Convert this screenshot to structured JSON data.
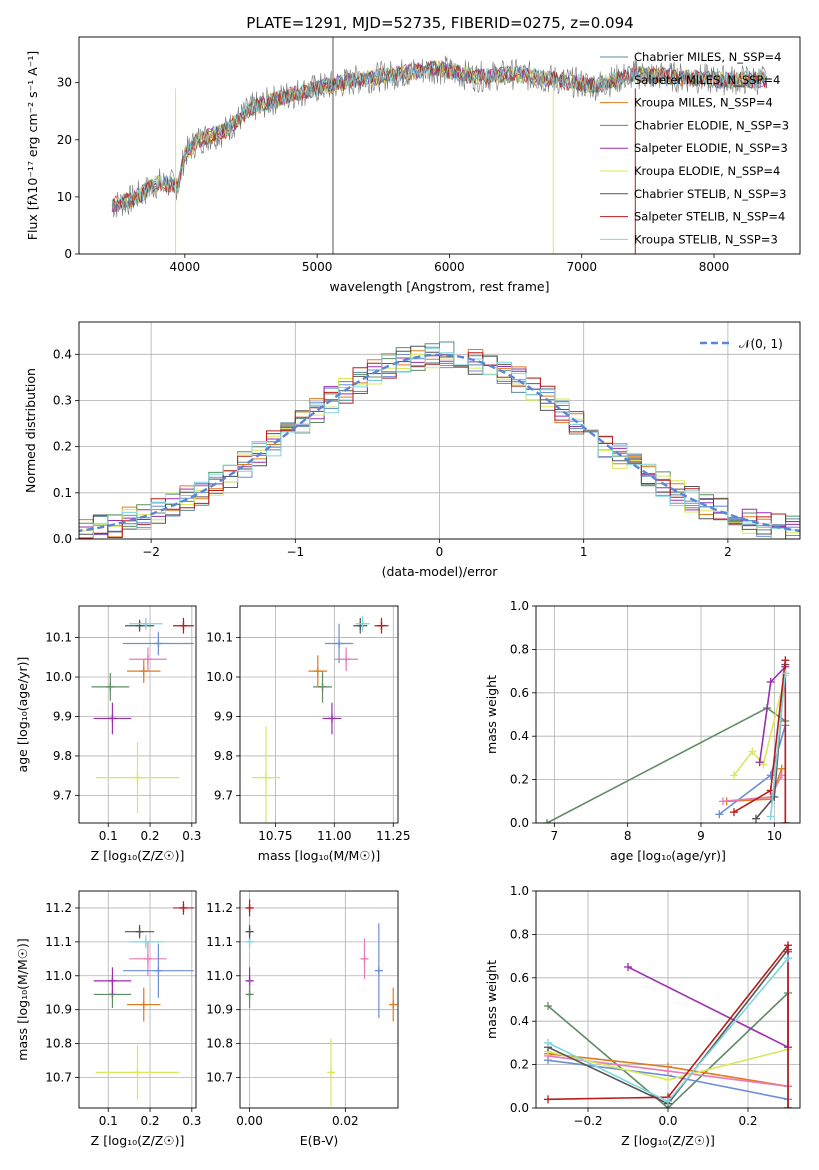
{
  "figure": {
    "title": "PLATE=1291, MJD=52735, FIBERID=0275, z=0.094"
  },
  "chart_data": [
    {
      "type": "line",
      "panel": "spectrum",
      "xlabel": "wavelength [Angstrom, rest frame]",
      "ylabel": "Flux [fλ10⁻¹⁷ erg cm⁻² s⁻¹ A⁻¹]",
      "xlim": [
        3200,
        8650
      ],
      "ylim": [
        0,
        38
      ],
      "xticks": [
        "4000",
        "5000",
        "6000",
        "7000",
        "8000"
      ],
      "yticks": [
        "0",
        "10",
        "20",
        "30"
      ],
      "series": [
        {
          "name": "Chabrier MILES, N_SSP=4",
          "color": "#5a8a9e"
        },
        {
          "name": "Salpeter MILES, N_SSP=4",
          "color": "#6d8fd8"
        },
        {
          "name": "Kroupa MILES, N_SSP=4",
          "color": "#e07b1f"
        },
        {
          "name": "Chabrier ELODIE, N_SSP=3",
          "color": "#5f8c63"
        },
        {
          "name": "Salpeter ELODIE, N_SSP=3",
          "color": "#9b2fae"
        },
        {
          "name": "Kroupa ELODIE, N_SSP=4",
          "color": "#d9e85a"
        },
        {
          "name": "Chabrier STELIB, N_SSP=3",
          "color": "#555555"
        },
        {
          "name": "Salpeter STELIB, N_SSP=4",
          "color": "#b81c1c"
        },
        {
          "name": "Kroupa STELIB, N_SSP=3",
          "color": "#7fd6e0"
        }
      ],
      "continuum": {
        "x": [
          3450,
          3600,
          3800,
          3950,
          4000,
          4100,
          4300,
          4500,
          4800,
          5100,
          5300,
          5600,
          5900,
          6200,
          6500,
          6800,
          7100,
          7400,
          7700,
          8000,
          8400
        ],
        "y": [
          8.5,
          9.5,
          12.5,
          12.0,
          17.5,
          20.0,
          21.5,
          25.5,
          28.0,
          29.5,
          30.5,
          31.5,
          32.5,
          31.0,
          31.5,
          30.5,
          29.5,
          31.5,
          31.0,
          30.5,
          30.5
        ]
      }
    },
    {
      "type": "line",
      "panel": "residual-histogram",
      "xlabel": "(data-model)/error",
      "ylabel": "Normed distribution",
      "xlim": [
        -2.5,
        2.5
      ],
      "ylim": [
        0,
        0.47
      ],
      "xticks": [
        "−2",
        "−1",
        "0",
        "1",
        "2"
      ],
      "yticks": [
        "0.0",
        "0.1",
        "0.2",
        "0.3",
        "0.4"
      ],
      "legend": "𝒩(0, 1)",
      "gaussian_color": "#5b86d6"
    },
    {
      "type": "scatter",
      "panel": "age-vs-Z",
      "xlabel": "Z [log₁₀(Z/Z☉)]",
      "ylabel": "age  [log₁₀(age/yr)]",
      "xlim": [
        0.03,
        0.31
      ],
      "ylim": [
        9.63,
        10.18
      ],
      "xticks": [
        "0.1",
        "0.2",
        "0.3"
      ],
      "yticks": [
        "9.7",
        "9.8",
        "9.9",
        "10.0",
        "10.1"
      ],
      "points": [
        {
          "x": 0.17,
          "y": 9.745,
          "xerr": 0.1,
          "yerr": 0.09,
          "color": "#d9e85a"
        },
        {
          "x": 0.11,
          "y": 9.895,
          "xerr": 0.045,
          "yerr": 0.04,
          "color": "#9b2fae"
        },
        {
          "x": 0.105,
          "y": 9.975,
          "xerr": 0.045,
          "yerr": 0.035,
          "color": "#5f8c63"
        },
        {
          "x": 0.185,
          "y": 10.015,
          "xerr": 0.04,
          "yerr": 0.03,
          "color": "#e07b1f"
        },
        {
          "x": 0.195,
          "y": 10.045,
          "xerr": 0.045,
          "yerr": 0.03,
          "color": "#e87bb6"
        },
        {
          "x": 0.22,
          "y": 10.085,
          "xerr": 0.085,
          "yerr": 0.03,
          "color": "#6d8fd8"
        },
        {
          "x": 0.175,
          "y": 10.13,
          "xerr": 0.035,
          "yerr": 0.015,
          "color": "#555555"
        },
        {
          "x": 0.19,
          "y": 10.135,
          "xerr": 0.04,
          "yerr": 0.015,
          "color": "#7fd6e0"
        },
        {
          "x": 0.28,
          "y": 10.13,
          "xerr": 0.025,
          "yerr": 0.02,
          "color": "#b81c1c"
        }
      ]
    },
    {
      "type": "scatter",
      "panel": "age-vs-mass",
      "xlabel": "mass [log₁₀(M/M☉)]",
      "ylabel": "",
      "xlim": [
        10.6,
        11.27
      ],
      "ylim": [
        9.63,
        10.18
      ],
      "xticks": [
        "10.75",
        "11.00",
        "11.25"
      ],
      "yticks": [
        "9.7",
        "9.8",
        "9.9",
        "10.0",
        "10.1"
      ],
      "points": [
        {
          "x": 10.71,
          "y": 9.745,
          "xerr": 0.06,
          "yerr": 0.13,
          "color": "#d9e85a"
        },
        {
          "x": 10.99,
          "y": 9.895,
          "xerr": 0.04,
          "yerr": 0.04,
          "color": "#9b2fae"
        },
        {
          "x": 10.95,
          "y": 9.975,
          "xerr": 0.04,
          "yerr": 0.04,
          "color": "#5f8c63"
        },
        {
          "x": 10.93,
          "y": 10.015,
          "xerr": 0.04,
          "yerr": 0.04,
          "color": "#e07b1f"
        },
        {
          "x": 11.05,
          "y": 10.045,
          "xerr": 0.05,
          "yerr": 0.03,
          "color": "#e87bb6"
        },
        {
          "x": 11.02,
          "y": 10.085,
          "xerr": 0.06,
          "yerr": 0.05,
          "color": "#6d8fd8"
        },
        {
          "x": 11.11,
          "y": 10.13,
          "xerr": 0.03,
          "yerr": 0.02,
          "color": "#555555"
        },
        {
          "x": 11.12,
          "y": 10.135,
          "xerr": 0.03,
          "yerr": 0.02,
          "color": "#7fd6e0"
        },
        {
          "x": 11.2,
          "y": 10.13,
          "xerr": 0.03,
          "yerr": 0.02,
          "color": "#b81c1c"
        }
      ]
    },
    {
      "type": "line",
      "panel": "massweight-vs-age",
      "xlabel": "age  [log₁₀(age/yr)]",
      "ylabel": "mass weight",
      "xlim": [
        6.75,
        10.35
      ],
      "ylim": [
        0,
        1.0
      ],
      "xticks": [
        "7",
        "8",
        "9",
        "10"
      ],
      "yticks": [
        "0.0",
        "0.2",
        "0.4",
        "0.6",
        "0.8",
        "1.0"
      ],
      "series": [
        {
          "color": "#5f8c63",
          "x": [
            6.9,
            9.9,
            10.15,
            10.15
          ],
          "y": [
            0.0,
            0.53,
            0.47,
            0.0
          ]
        },
        {
          "color": "#6d8fd8",
          "x": [
            9.25,
            9.95,
            10.15
          ],
          "y": [
            0.04,
            0.22,
            0.45
          ]
        },
        {
          "color": "#e07b1f",
          "x": [
            9.35,
            9.95,
            10.1
          ],
          "y": [
            0.1,
            0.11,
            0.25
          ]
        },
        {
          "color": "#e87bb6",
          "x": [
            9.3,
            9.95,
            10.1
          ],
          "y": [
            0.1,
            0.12,
            0.22
          ]
        },
        {
          "color": "#d9e85a",
          "x": [
            9.45,
            9.7,
            9.85,
            10.15
          ],
          "y": [
            0.22,
            0.33,
            0.27,
            0.68
          ]
        },
        {
          "color": "#9b2fae",
          "x": [
            9.8,
            9.95,
            10.15
          ],
          "y": [
            0.28,
            0.65,
            0.72
          ]
        },
        {
          "color": "#555555",
          "x": [
            9.75,
            10.0,
            10.15
          ],
          "y": [
            0.02,
            0.12,
            0.73
          ]
        },
        {
          "color": "#b81c1c",
          "x": [
            9.45,
            9.95,
            10.15,
            10.15
          ],
          "y": [
            0.05,
            0.15,
            0.75,
            0.0
          ]
        },
        {
          "color": "#7fd6e0",
          "x": [
            9.95,
            10.15
          ],
          "y": [
            0.03,
            0.69
          ]
        }
      ]
    },
    {
      "type": "scatter",
      "panel": "mass-vs-Z",
      "xlabel": "Z [log₁₀(Z/Z☉)]",
      "ylabel": "mass [log₁₀(M/M☉)]",
      "xlim": [
        0.03,
        0.31
      ],
      "ylim": [
        10.61,
        11.25
      ],
      "xticks": [
        "0.1",
        "0.2",
        "0.3"
      ],
      "yticks": [
        "10.7",
        "10.8",
        "10.9",
        "11.0",
        "11.1",
        "11.2"
      ],
      "points": [
        {
          "x": 0.17,
          "y": 10.715,
          "xerr": 0.1,
          "yerr": 0.08,
          "color": "#d9e85a"
        },
        {
          "x": 0.11,
          "y": 10.945,
          "xerr": 0.045,
          "yerr": 0.04,
          "color": "#5f8c63"
        },
        {
          "x": 0.11,
          "y": 10.985,
          "xerr": 0.045,
          "yerr": 0.04,
          "color": "#9b2fae"
        },
        {
          "x": 0.185,
          "y": 10.915,
          "xerr": 0.04,
          "yerr": 0.05,
          "color": "#e07b1f"
        },
        {
          "x": 0.195,
          "y": 11.05,
          "xerr": 0.045,
          "yerr": 0.05,
          "color": "#e87bb6"
        },
        {
          "x": 0.22,
          "y": 11.015,
          "xerr": 0.085,
          "yerr": 0.08,
          "color": "#6d8fd8"
        },
        {
          "x": 0.175,
          "y": 11.13,
          "xerr": 0.035,
          "yerr": 0.02,
          "color": "#555555"
        },
        {
          "x": 0.19,
          "y": 11.1,
          "xerr": 0.04,
          "yerr": 0.02,
          "color": "#7fd6e0"
        },
        {
          "x": 0.28,
          "y": 11.2,
          "xerr": 0.025,
          "yerr": 0.02,
          "color": "#b81c1c"
        }
      ]
    },
    {
      "type": "scatter",
      "panel": "mass-vs-ebv",
      "xlabel": "E(B-V)",
      "ylabel": "",
      "xlim": [
        -0.002,
        0.031
      ],
      "ylim": [
        10.61,
        11.25
      ],
      "xticks": [
        "0.00",
        "0.02"
      ],
      "yticks": [
        "10.7",
        "10.8",
        "10.9",
        "11.0",
        "11.1",
        "11.2"
      ],
      "points": [
        {
          "x": 0.0,
          "y": 11.2,
          "yerr": 0.025,
          "color": "#b81c1c"
        },
        {
          "x": 0.0,
          "y": 11.1,
          "yerr": 0.02,
          "color": "#7fd6e0"
        },
        {
          "x": 0.0,
          "y": 11.13,
          "yerr": 0.02,
          "color": "#555555"
        },
        {
          "x": 0.0,
          "y": 10.985,
          "yerr": 0.04,
          "color": "#9b2fae"
        },
        {
          "x": 0.0,
          "y": 10.945,
          "yerr": 0.04,
          "color": "#5f8c63"
        },
        {
          "x": 0.017,
          "y": 10.715,
          "yerr": 0.1,
          "color": "#d9e85a"
        },
        {
          "x": 0.024,
          "y": 11.05,
          "yerr": 0.06,
          "color": "#e87bb6"
        },
        {
          "x": 0.027,
          "y": 11.015,
          "yerr": 0.14,
          "color": "#6d8fd8"
        },
        {
          "x": 0.03,
          "y": 10.915,
          "yerr": 0.05,
          "color": "#e07b1f"
        }
      ]
    },
    {
      "type": "line",
      "panel": "massweight-vs-Z",
      "xlabel": "Z [log₁₀(Z/Z☉)]",
      "ylabel": "mass weight",
      "xlim": [
        -0.33,
        0.33
      ],
      "ylim": [
        0,
        1.0
      ],
      "xticks": [
        "−0.2",
        "0.0",
        "0.2"
      ],
      "yticks": [
        "0.0",
        "0.2",
        "0.4",
        "0.6",
        "0.8",
        "1.0"
      ],
      "series": [
        {
          "color": "#5f8c63",
          "x": [
            -0.3,
            0.0,
            0.3,
            0.3
          ],
          "y": [
            0.47,
            0.0,
            0.53,
            0.0
          ]
        },
        {
          "color": "#6d8fd8",
          "x": [
            -0.3,
            0.0,
            0.3
          ],
          "y": [
            0.22,
            0.15,
            0.04
          ]
        },
        {
          "color": "#e07b1f",
          "x": [
            -0.3,
            0.0,
            0.3
          ],
          "y": [
            0.25,
            0.19,
            0.1
          ]
        },
        {
          "color": "#e87bb6",
          "x": [
            -0.3,
            0.0,
            0.3
          ],
          "y": [
            0.24,
            0.17,
            0.1
          ]
        },
        {
          "color": "#d9e85a",
          "x": [
            -0.3,
            0.0,
            0.3
          ],
          "y": [
            0.26,
            0.13,
            0.27
          ]
        },
        {
          "color": "#9b2fae",
          "x": [
            -0.1,
            0.3,
            0.3
          ],
          "y": [
            0.65,
            0.28,
            0.72
          ]
        },
        {
          "color": "#555555",
          "x": [
            -0.3,
            0.0,
            0.3
          ],
          "y": [
            0.28,
            0.02,
            0.73
          ]
        },
        {
          "color": "#b81c1c",
          "x": [
            -0.3,
            0.0,
            0.3,
            0.3
          ],
          "y": [
            0.04,
            0.05,
            0.75,
            0.0
          ]
        },
        {
          "color": "#7fd6e0",
          "x": [
            -0.3,
            0.0,
            0.3
          ],
          "y": [
            0.3,
            0.03,
            0.69
          ]
        }
      ]
    }
  ]
}
